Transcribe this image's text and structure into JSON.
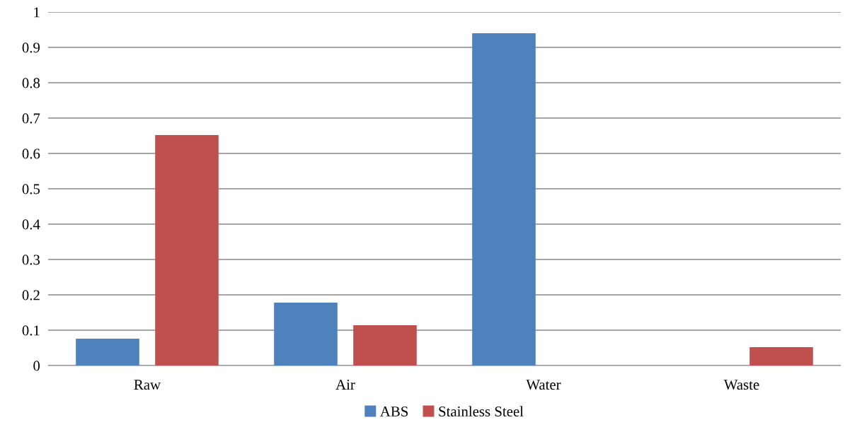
{
  "chart_data": {
    "type": "bar",
    "categories": [
      "Raw",
      "Air",
      "Water",
      "Waste"
    ],
    "series": [
      {
        "name": "ABS",
        "color": "#4f81bd",
        "values": [
          0.076,
          0.178,
          0.94,
          0
        ]
      },
      {
        "name": "Stainless Steel",
        "color": "#c0504d",
        "values": [
          0.652,
          0.114,
          0,
          0.052
        ]
      }
    ],
    "ylim": [
      0,
      1
    ],
    "yticks": [
      {
        "value": 0,
        "label": "0"
      },
      0.1,
      0.2,
      0.3,
      0.4,
      0.5,
      0.6,
      0.7,
      0.8,
      0.9,
      {
        "value": 1,
        "label": "1"
      }
    ],
    "grid": "y",
    "legend": "bottom"
  }
}
